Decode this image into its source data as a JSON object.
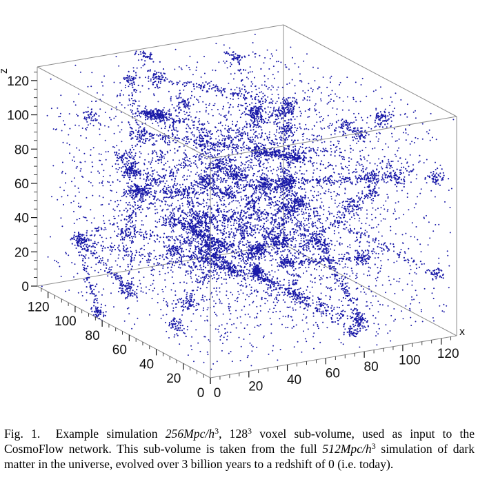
{
  "chart_data": {
    "type": "scatter",
    "projection": "3d",
    "title": "",
    "xlabel": "x",
    "ylabel": "",
    "zlabel": "z",
    "xlim": [
      0,
      128
    ],
    "ylim": [
      0,
      128
    ],
    "zlim": [
      0,
      128
    ],
    "x_ticks": [
      "0",
      "20",
      "40",
      "60",
      "80",
      "100",
      "120"
    ],
    "y_ticks": [
      "0",
      "20",
      "40",
      "60",
      "80",
      "100",
      "120"
    ],
    "z_ticks": [
      "0",
      "20",
      "40",
      "60",
      "80",
      "100",
      "120"
    ],
    "grid": false,
    "box": true,
    "marker_color": "#1a1aa8",
    "series": [
      {
        "description": "dark matter particle positions in a 128^3 voxel sub-volume, shown as a dense filamentary point cloud",
        "points_xyz_sample": [
          [
            12,
            20,
            110
          ],
          [
            40,
            64,
            72
          ],
          [
            64,
            64,
            64
          ],
          [
            90,
            30,
            50
          ],
          [
            110,
            100,
            20
          ],
          [
            20,
            110,
            90
          ],
          [
            75,
            85,
            100
          ],
          [
            100,
            15,
            115
          ],
          [
            30,
            45,
            30
          ],
          [
            55,
            120,
            45
          ]
        ]
      }
    ]
  },
  "caption": {
    "fig_label": "Fig. 1.",
    "p1": "Example simulation ",
    "m1": "256Mpc/h",
    "sup1": "3",
    "p2": ", 128",
    "sup2": "3",
    "p3": " voxel sub-volume, used as input to the CosmoFlow network. This sub-volume is taken from the full ",
    "m2": "512Mpc/h",
    "sup3": "3",
    "p4": " simulation of dark matter in the universe, evolved over 3 billion years to a redshift of 0 (i.e. today)."
  }
}
